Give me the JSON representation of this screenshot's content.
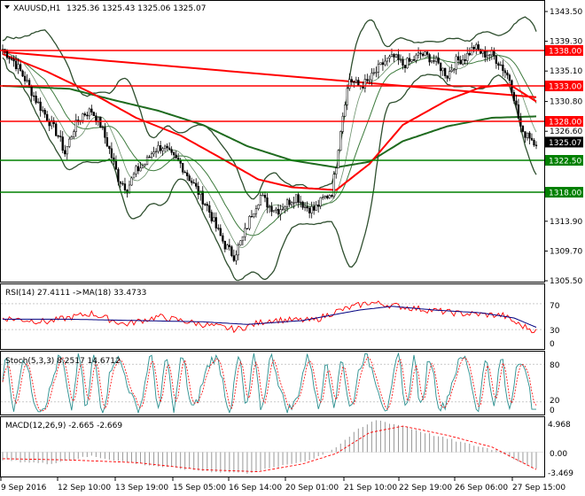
{
  "header": {
    "symbol": "XAUUSD,H1",
    "ohlc": "1325.36 1325.43 1325.06 1325.07"
  },
  "colors": {
    "red": "#ff0000",
    "green": "#008000",
    "dark_green": "#1f6b1f",
    "band": "#2f4f2f",
    "navy": "#000080",
    "teal": "#2a8f8f",
    "price_tag_bg": "#000000"
  },
  "panes": {
    "rsi": {
      "label": "RSI(14) 27.4111 ->MA(18) 33.4733",
      "ticks": [
        "70",
        "30",
        "0"
      ]
    },
    "stoch": {
      "label": "Stoch(5,3,3) 8.2517 14.6712",
      "ticks": [
        "80",
        "20",
        "0"
      ]
    },
    "macd": {
      "label": "MACD(12,26,9) -2.665 -2.669",
      "ticks": [
        "4.968",
        "0.00",
        "-3.469"
      ]
    }
  },
  "chart_data": {
    "type": "candlestick",
    "symbol": "XAUUSD",
    "timeframe": "H1",
    "ylim": [
      1305.5,
      1345.0
    ],
    "y_ticks": [
      "1343.50",
      "1339.30",
      "1335.10",
      "1330.80",
      "1326.60",
      "1313.90",
      "1309.70",
      "1305.50"
    ],
    "x_ticks": [
      "9 Sep 2016",
      "12 Sep 10:00",
      "13 Sep 19:00",
      "15 Sep 05:00",
      "16 Sep 14:00",
      "20 Sep 01:00",
      "21 Sep 10:00",
      "22 Sep 19:00",
      "26 Sep 06:00",
      "27 Sep 15:00"
    ],
    "horizontal_levels": [
      {
        "value": 1338.0,
        "label": "1338.00",
        "color": "#ff0000"
      },
      {
        "value": 1333.0,
        "label": "1333.00",
        "color": "#ff0000"
      },
      {
        "value": 1328.0,
        "label": "1328.00",
        "color": "#ff0000"
      },
      {
        "value": 1322.5,
        "label": "1322.50",
        "color": "#008000"
      },
      {
        "value": 1318.0,
        "label": "1318.00",
        "color": "#008000"
      }
    ],
    "current_price": "1325.07",
    "close_path": [
      [
        0,
        1338.2
      ],
      [
        5,
        1336.5
      ],
      [
        10,
        1334.0
      ],
      [
        15,
        1331.0
      ],
      [
        20,
        1328.5
      ],
      [
        25,
        1326.0
      ],
      [
        28,
        1323.5
      ],
      [
        32,
        1327.0
      ],
      [
        36,
        1329.0
      ],
      [
        40,
        1329.5
      ],
      [
        44,
        1327.5
      ],
      [
        48,
        1324.0
      ],
      [
        52,
        1320.0
      ],
      [
        56,
        1318.5
      ],
      [
        60,
        1321.0
      ],
      [
        64,
        1322.0
      ],
      [
        68,
        1324.0
      ],
      [
        72,
        1324.5
      ],
      [
        76,
        1323.0
      ],
      [
        80,
        1322.0
      ],
      [
        84,
        1320.0
      ],
      [
        88,
        1318.0
      ],
      [
        92,
        1316.0
      ],
      [
        96,
        1313.0
      ],
      [
        100,
        1310.5
      ],
      [
        104,
        1309.0
      ],
      [
        108,
        1311.5
      ],
      [
        112,
        1315.0
      ],
      [
        116,
        1317.5
      ],
      [
        120,
        1316.0
      ],
      [
        124,
        1315.5
      ],
      [
        128,
        1316.5
      ],
      [
        132,
        1317.5
      ],
      [
        136,
        1316.0
      ],
      [
        140,
        1315.5
      ],
      [
        144,
        1317.0
      ],
      [
        148,
        1318.0
      ],
      [
        150,
        1322.0
      ],
      [
        152,
        1327.0
      ],
      [
        154,
        1331.0
      ],
      [
        156,
        1334.0
      ],
      [
        160,
        1333.0
      ],
      [
        164,
        1333.5
      ],
      [
        168,
        1335.0
      ],
      [
        172,
        1336.5
      ],
      [
        176,
        1337.0
      ],
      [
        180,
        1336.0
      ],
      [
        184,
        1336.5
      ],
      [
        188,
        1337.5
      ],
      [
        192,
        1337.0
      ],
      [
        196,
        1336.0
      ],
      [
        200,
        1334.5
      ],
      [
        204,
        1336.5
      ],
      [
        208,
        1337.0
      ],
      [
        212,
        1338.5
      ],
      [
        216,
        1337.5
      ],
      [
        220,
        1337.5
      ],
      [
        224,
        1336.0
      ],
      [
        228,
        1334.0
      ],
      [
        230,
        1331.5
      ],
      [
        232,
        1328.5
      ],
      [
        234,
        1326.0
      ],
      [
        236,
        1326.5
      ],
      [
        238,
        1325.5
      ],
      [
        240,
        1325.1
      ]
    ],
    "sma_200": [
      [
        0,
        1333.0
      ],
      [
        30,
        1332.6
      ],
      [
        50,
        1331.0
      ],
      [
        70,
        1329.5
      ],
      [
        90,
        1327.5
      ],
      [
        110,
        1324.5
      ],
      [
        130,
        1322.5
      ],
      [
        150,
        1321.5
      ],
      [
        165,
        1322.3
      ],
      [
        180,
        1325.2
      ],
      [
        200,
        1327.3
      ],
      [
        220,
        1328.5
      ],
      [
        240,
        1328.7
      ]
    ],
    "sma_100": [
      [
        0,
        1337.5
      ],
      [
        20,
        1335.0
      ],
      [
        40,
        1332.0
      ],
      [
        60,
        1328.5
      ],
      [
        80,
        1326.0
      ],
      [
        100,
        1322.5
      ],
      [
        115,
        1319.8
      ],
      [
        130,
        1318.7
      ],
      [
        150,
        1318.3
      ],
      [
        165,
        1322.0
      ],
      [
        180,
        1327.5
      ],
      [
        200,
        1331.0
      ],
      [
        215,
        1332.8
      ],
      [
        228,
        1333.2
      ],
      [
        240,
        1330.8
      ]
    ],
    "trendline": {
      "from": [
        0,
        1337.8
      ],
      "to": [
        240,
        1331.4
      ],
      "color": "#ff0000"
    },
    "rsi_values": [
      [
        0,
        48
      ],
      [
        20,
        42
      ],
      [
        40,
        55
      ],
      [
        55,
        38
      ],
      [
        70,
        50
      ],
      [
        90,
        38
      ],
      [
        105,
        30
      ],
      [
        120,
        45
      ],
      [
        140,
        44
      ],
      [
        150,
        58
      ],
      [
        165,
        72
      ],
      [
        185,
        63
      ],
      [
        205,
        55
      ],
      [
        225,
        52
      ],
      [
        232,
        38
      ],
      [
        240,
        27.4
      ]
    ],
    "rsi_ma": [
      [
        0,
        46
      ],
      [
        30,
        46
      ],
      [
        60,
        44
      ],
      [
        90,
        42
      ],
      [
        110,
        38
      ],
      [
        135,
        44
      ],
      [
        160,
        60
      ],
      [
        175,
        66
      ],
      [
        195,
        60
      ],
      [
        215,
        56
      ],
      [
        230,
        48
      ],
      [
        240,
        33.5
      ]
    ],
    "macd_hist": [
      [
        0,
        -1.2
      ],
      [
        20,
        -1.8
      ],
      [
        40,
        -0.6
      ],
      [
        55,
        -1.5
      ],
      [
        75,
        -2.4
      ],
      [
        95,
        -3.0
      ],
      [
        110,
        -3.2
      ],
      [
        125,
        -2.2
      ],
      [
        140,
        -1.0
      ],
      [
        150,
        0.8
      ],
      [
        160,
        3.5
      ],
      [
        168,
        4.968
      ],
      [
        180,
        4.0
      ],
      [
        195,
        2.5
      ],
      [
        210,
        1.2
      ],
      [
        222,
        0.3
      ],
      [
        230,
        -1.0
      ],
      [
        240,
        -2.665
      ]
    ],
    "macd_signal": [
      [
        0,
        -1.0
      ],
      [
        30,
        -1.2
      ],
      [
        60,
        -1.6
      ],
      [
        90,
        -2.7
      ],
      [
        115,
        -3.0
      ],
      [
        135,
        -1.8
      ],
      [
        150,
        -0.2
      ],
      [
        165,
        3.0
      ],
      [
        180,
        4.0
      ],
      [
        200,
        2.6
      ],
      [
        220,
        0.8
      ],
      [
        240,
        -2.669
      ]
    ],
    "stoch_main_value": 8.2517,
    "stoch_signal_value": 14.6712
  }
}
